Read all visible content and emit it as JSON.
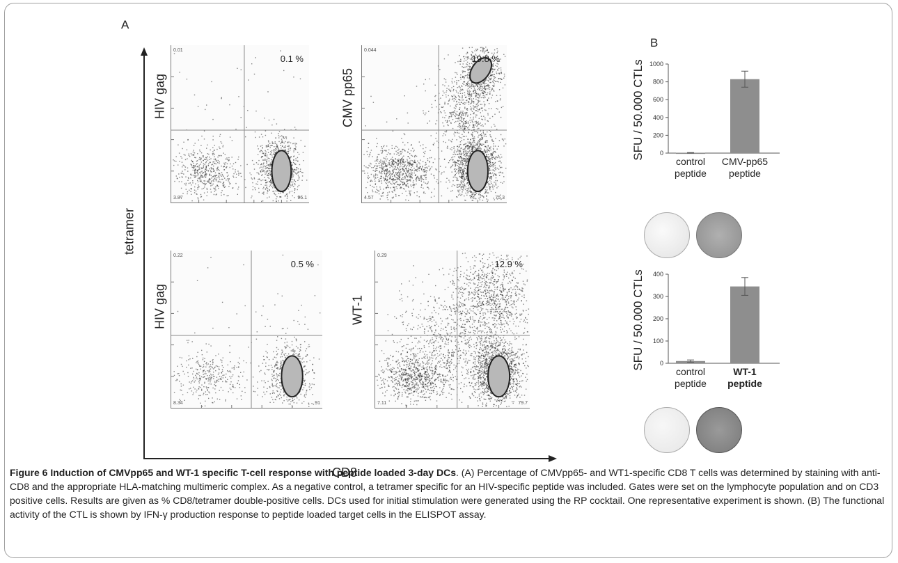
{
  "figure": {
    "panel_a_label": "A",
    "panel_b_label": "B",
    "y_axis_label": "tetramer",
    "x_axis_label": "CD8"
  },
  "flow_plots": [
    {
      "id": "hiv-gag-1",
      "marker": "HIV gag",
      "percent": "0.1 %",
      "q_ul": "0.01",
      "q_ll": "3.87",
      "q_lr": "96.1",
      "q_ur_pct": 0.1,
      "density": 0.55,
      "cloud": "low"
    },
    {
      "id": "cmv-pp65",
      "marker": "CMV pp65",
      "percent": "19.8 %",
      "q_ul": "0.044",
      "q_ll": "4.57",
      "q_lr": "75.3",
      "q_ur_pct": 19.8,
      "density": 0.9,
      "cloud": "cmv"
    },
    {
      "id": "hiv-gag-2",
      "marker": "HIV gag",
      "percent": "0.5 %",
      "q_ul": "0.22",
      "q_ll": "8.34",
      "q_lr": "91",
      "q_ur_pct": 0.5,
      "density": 0.35,
      "cloud": "low"
    },
    {
      "id": "wt-1",
      "marker": "WT-1",
      "percent": "12.9 %",
      "q_ul": "0.29",
      "q_ll": "7.11",
      "q_lr": "79.7",
      "q_ur_pct": 12.9,
      "density": 0.85,
      "cloud": "wt1"
    }
  ],
  "chart_data": [
    {
      "type": "bar",
      "title": "",
      "ylabel": "SFU / 50.000 CTLs",
      "xlabel": "",
      "categories": [
        "control peptide",
        "CMV-pp65 peptide"
      ],
      "category_lines": [
        [
          "control",
          "peptide"
        ],
        [
          "CMV-pp65",
          "peptide"
        ]
      ],
      "category_bold": [
        false,
        false
      ],
      "values": [
        3,
        830
      ],
      "errors": [
        3,
        90
      ],
      "ylim": [
        0,
        1000
      ],
      "yticks": [
        0,
        200,
        400,
        600,
        800,
        1000
      ],
      "bar_color": "#8e8e8e",
      "grid": false
    },
    {
      "type": "bar",
      "title": "",
      "ylabel": "SFU / 50.000 CTLs",
      "xlabel": "",
      "categories": [
        "control peptide",
        "WT-1 peptide"
      ],
      "category_lines": [
        [
          "control",
          "peptide"
        ],
        [
          "WT-1",
          "peptide"
        ]
      ],
      "category_bold": [
        false,
        true
      ],
      "values": [
        10,
        345
      ],
      "errors": [
        5,
        40
      ],
      "ylim": [
        0,
        400
      ],
      "yticks": [
        0,
        100,
        200,
        300,
        400
      ],
      "bar_color": "#8e8e8e",
      "grid": false
    }
  ],
  "caption": {
    "title": "Figure 6 Induction of CMVpp65 and WT-1 specific T-cell response with peptide loaded 3-day DCs",
    "text": ". (A) Percentage of CMVpp65- and WT1-specific CD8 T cells was determined by staining with anti-CD8 and the appropriate HLA-matching multimeric complex. As a negative control, a tetramer specific for an HIV-specific peptide was included. Gates were set on the lymphocyte population and on CD3 positive cells. Results are given as % CD8/tetramer double-positive cells. DCs used for initial stimulation were generated using the RP cocktail. One representative experiment is shown. (B) The functional activity of the CTL is shown by IFN-γ production response to peptide loaded target cells in the ELISPOT assay."
  }
}
